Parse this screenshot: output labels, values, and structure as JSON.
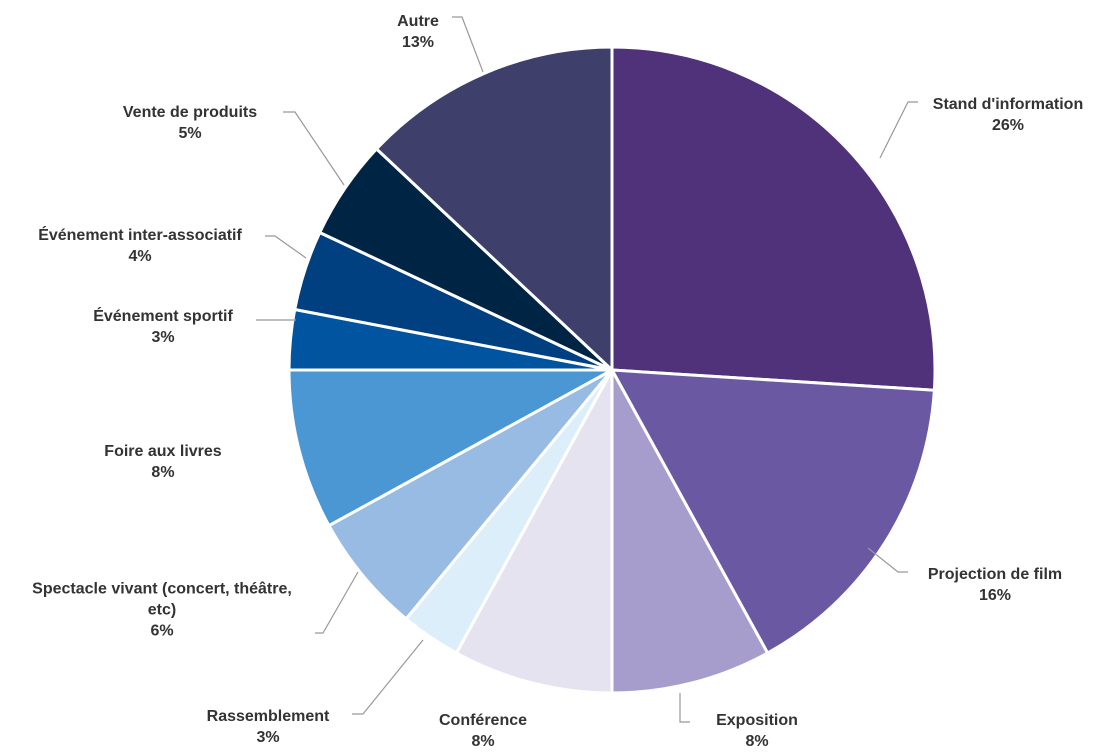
{
  "chart_data": {
    "type": "pie",
    "categories": [
      "Stand d'information",
      "Projection de film",
      "Exposition",
      "Conférence",
      "Rassemblement",
      "Spectacle vivant (concert, théâtre, etc)",
      "Foire aux livres",
      "Événement sportif",
      "Événement inter-associatif",
      "Vente de produits",
      "Autre"
    ],
    "values": [
      26,
      16,
      8,
      8,
      3,
      6,
      8,
      3,
      4,
      5,
      13
    ],
    "value_labels": [
      "26%",
      "16%",
      "8%",
      "8%",
      "3%",
      "6%",
      "8%",
      "3%",
      "4%",
      "5%",
      "13%"
    ],
    "colors": [
      "#4f3279",
      "#6a58a3",
      "#a69dcd",
      "#e6e3f1",
      "#ddeefb",
      "#97bbe3",
      "#4a97d4",
      "#0054a0",
      "#004080",
      "#002544",
      "#3f3f6b"
    ]
  }
}
